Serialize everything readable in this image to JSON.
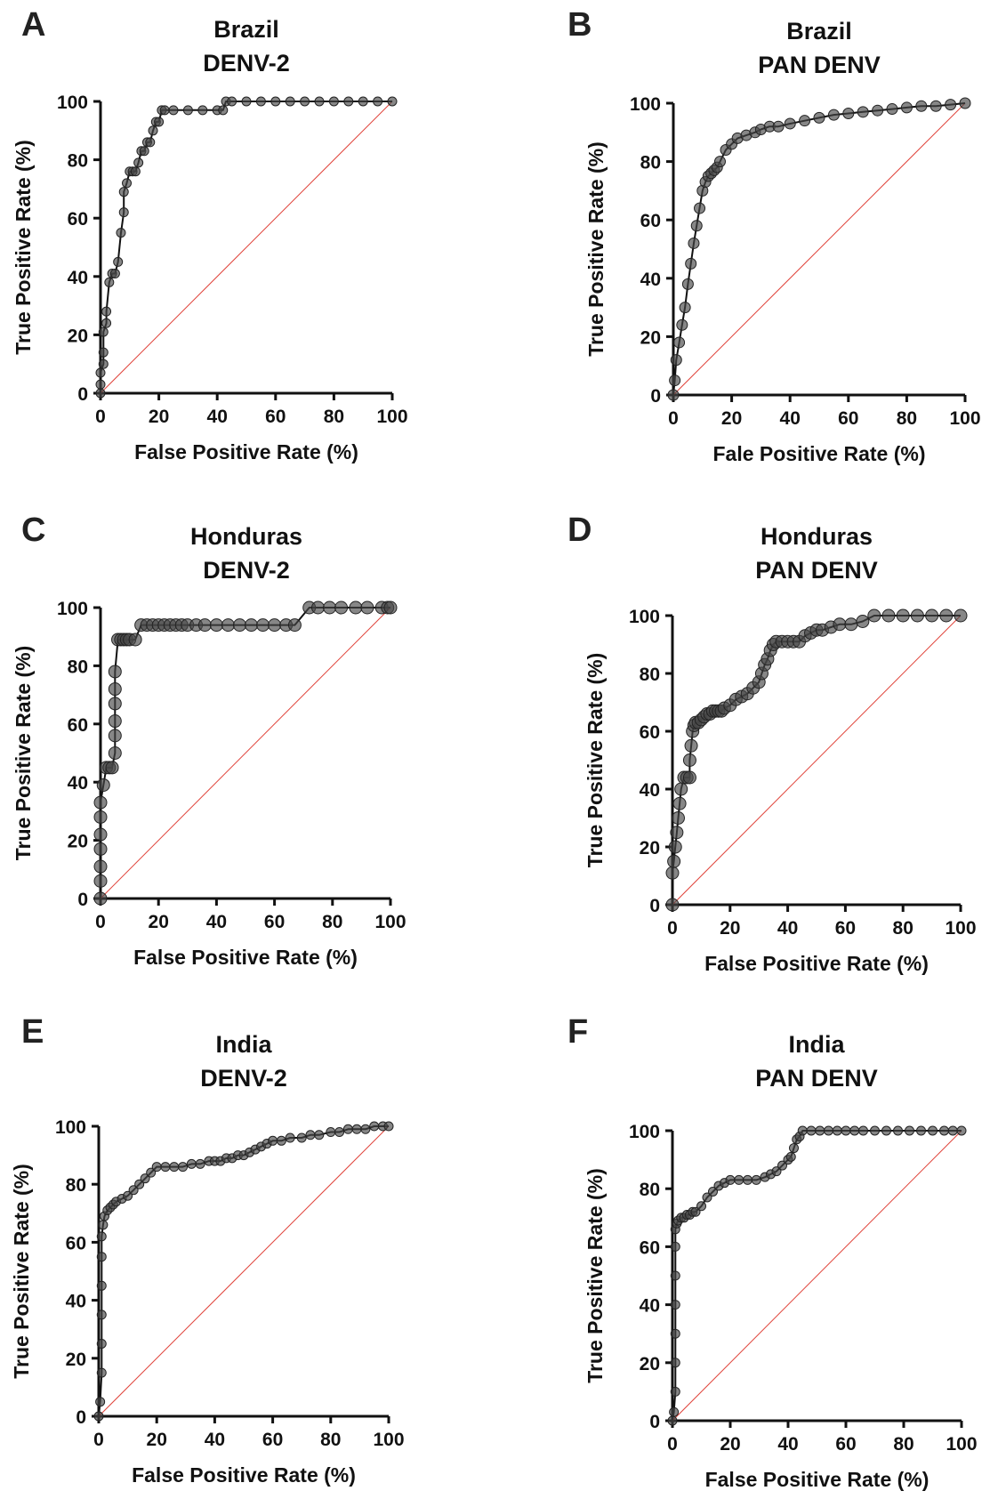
{
  "chart_data": [
    {
      "type": "line",
      "panel_letter": "A",
      "title": [
        "Brazil",
        "DENV-2"
      ],
      "xlabel": "False Positive Rate (%)",
      "ylabel": "True Positive Rate (%)",
      "xlim": [
        0,
        100
      ],
      "ylim": [
        0,
        100
      ],
      "xticks": [
        "0",
        "20",
        "40",
        "60",
        "80",
        "100"
      ],
      "yticks": [
        "0",
        "20",
        "40",
        "60",
        "80",
        "100"
      ],
      "grid": false,
      "reference_line": true,
      "series": [
        {
          "x": [
            0,
            0,
            0,
            1,
            1,
            1,
            2,
            2,
            3,
            4,
            5,
            6,
            7,
            8,
            8,
            9,
            10,
            11,
            12,
            13,
            14,
            15,
            16,
            17,
            18,
            19,
            20,
            21,
            22,
            25,
            30,
            35,
            40,
            42,
            43,
            45,
            50,
            55,
            60,
            65,
            70,
            75,
            80,
            85,
            90,
            95,
            100
          ],
          "y": [
            0,
            3,
            7,
            10,
            14,
            21,
            24,
            28,
            38,
            41,
            41,
            45,
            55,
            62,
            69,
            72,
            76,
            76,
            76,
            79,
            83,
            83,
            86,
            86,
            90,
            93,
            93,
            97,
            97,
            97,
            97,
            97,
            97,
            97,
            100,
            100,
            100,
            100,
            100,
            100,
            100,
            100,
            100,
            100,
            100,
            100,
            100
          ]
        }
      ]
    },
    {
      "type": "line",
      "panel_letter": "B",
      "title": [
        "Brazil",
        "PAN DENV"
      ],
      "xlabel": "Fale Positive Rate (%)",
      "ylabel": "True Positive Rate (%)",
      "xlim": [
        0,
        100
      ],
      "ylim": [
        0,
        100
      ],
      "xticks": [
        "0",
        "20",
        "40",
        "60",
        "80",
        "100"
      ],
      "yticks": [
        "0",
        "20",
        "40",
        "60",
        "80",
        "100"
      ],
      "grid": false,
      "reference_line": true,
      "series": [
        {
          "x": [
            0,
            0.5,
            1,
            2,
            3,
            4,
            5,
            6,
            7,
            8,
            9,
            10,
            11,
            12,
            13,
            14,
            15,
            16,
            18,
            20,
            22,
            25,
            28,
            30,
            33,
            36,
            40,
            45,
            50,
            55,
            60,
            65,
            70,
            75,
            80,
            85,
            90,
            95,
            100
          ],
          "y": [
            0,
            5,
            12,
            18,
            24,
            30,
            38,
            45,
            52,
            58,
            64,
            70,
            73,
            75,
            76,
            77,
            78,
            80,
            84,
            86,
            88,
            89,
            90,
            91,
            92,
            92,
            93,
            94,
            95,
            96,
            96.5,
            97,
            97.5,
            98,
            98.5,
            99,
            99,
            99.5,
            100
          ]
        }
      ]
    },
    {
      "type": "line",
      "panel_letter": "C",
      "title": [
        "Honduras",
        "DENV-2"
      ],
      "xlabel": "False Positive Rate (%)",
      "ylabel": "True Positive Rate (%)",
      "xlim": [
        0,
        100
      ],
      "ylim": [
        0,
        100
      ],
      "xticks": [
        "0",
        "20",
        "40",
        "60",
        "80",
        "100"
      ],
      "yticks": [
        "0",
        "20",
        "40",
        "60",
        "80",
        "100"
      ],
      "grid": false,
      "reference_line": true,
      "series": [
        {
          "x": [
            0,
            0,
            0,
            0,
            0,
            0,
            0,
            1,
            2,
            3,
            4,
            5,
            5,
            5,
            5,
            5,
            5,
            6,
            7,
            8,
            9,
            10,
            12,
            14,
            16,
            18,
            20,
            22,
            24,
            26,
            28,
            30,
            33,
            36,
            40,
            44,
            48,
            52,
            56,
            60,
            64,
            67,
            72,
            75,
            79,
            83,
            88,
            92,
            97,
            99,
            100
          ],
          "y": [
            0,
            6,
            11,
            17,
            22,
            28,
            33,
            39,
            45,
            45,
            45,
            50,
            56,
            61,
            67,
            72,
            78,
            89,
            89,
            89,
            89,
            89,
            89,
            94,
            94,
            94,
            94,
            94,
            94,
            94,
            94,
            94,
            94,
            94,
            94,
            94,
            94,
            94,
            94,
            94,
            94,
            94,
            100,
            100,
            100,
            100,
            100,
            100,
            100,
            100,
            100
          ]
        }
      ]
    },
    {
      "type": "line",
      "panel_letter": "D",
      "title": [
        "Honduras",
        "PAN DENV"
      ],
      "xlabel": "False Positive Rate (%)",
      "ylabel": "True Positive Rate (%)",
      "xlim": [
        0,
        100
      ],
      "ylim": [
        0,
        100
      ],
      "xticks": [
        "0",
        "20",
        "40",
        "60",
        "80",
        "100"
      ],
      "yticks": [
        "0",
        "20",
        "40",
        "60",
        "80",
        "100"
      ],
      "grid": false,
      "reference_line": true,
      "series": [
        {
          "x": [
            0,
            0,
            0.5,
            1,
            1.5,
            2,
            2.5,
            3,
            4,
            5,
            6,
            6,
            6.5,
            7,
            7.5,
            8,
            9,
            10,
            11,
            12,
            13,
            14,
            15,
            16,
            17,
            18,
            20,
            22,
            24,
            26,
            28,
            30,
            31,
            32,
            33,
            34,
            35,
            36,
            38,
            40,
            42,
            44,
            46,
            48,
            50,
            52,
            55,
            58,
            62,
            66,
            70,
            75,
            80,
            85,
            90,
            95,
            100
          ],
          "y": [
            0,
            11,
            15,
            20,
            25,
            30,
            35,
            40,
            44,
            44,
            44,
            50,
            55,
            60,
            62,
            63,
            63,
            64,
            65,
            66,
            66,
            67,
            67,
            67,
            67,
            68,
            69,
            71,
            72,
            73,
            75,
            77,
            80,
            83,
            85,
            88,
            90,
            91,
            91,
            91,
            91,
            91,
            93,
            94,
            95,
            95,
            96,
            97,
            97,
            98,
            100,
            100,
            100,
            100,
            100,
            100,
            100
          ]
        }
      ]
    },
    {
      "type": "line",
      "panel_letter": "E",
      "title": [
        "India",
        "DENV-2"
      ],
      "xlabel": "False Positive Rate (%)",
      "ylabel": "True Positive Rate (%)",
      "xlim": [
        0,
        100
      ],
      "ylim": [
        0,
        100
      ],
      "xticks": [
        "0",
        "20",
        "40",
        "60",
        "80",
        "100"
      ],
      "yticks": [
        "0",
        "20",
        "40",
        "60",
        "80",
        "100"
      ],
      "grid": false,
      "reference_line": true,
      "series": [
        {
          "x": [
            0,
            0.5,
            1,
            1,
            1,
            1,
            1,
            1,
            1.5,
            2,
            3,
            4,
            5,
            6,
            8,
            10,
            12,
            14,
            16,
            18,
            20,
            23,
            26,
            29,
            32,
            35,
            38,
            40,
            42,
            44,
            46,
            48,
            50,
            52,
            54,
            56,
            58,
            60,
            63,
            66,
            70,
            73,
            76,
            80,
            83,
            86,
            89,
            92,
            95,
            98,
            100
          ],
          "y": [
            0,
            5,
            15,
            25,
            35,
            45,
            55,
            62,
            66,
            69,
            71,
            72,
            73,
            74,
            75,
            76,
            78,
            80,
            82,
            84,
            86,
            86,
            86,
            86,
            87,
            87,
            88,
            88,
            88,
            89,
            89,
            90,
            90,
            91,
            92,
            93,
            94,
            95,
            95,
            96,
            96,
            97,
            97,
            98,
            98,
            99,
            99,
            99,
            100,
            100,
            100
          ]
        }
      ]
    },
    {
      "type": "line",
      "panel_letter": "F",
      "title": [
        "India",
        "PAN DENV"
      ],
      "xlabel": "False Positive Rate (%)",
      "ylabel": "True Positive Rate (%)",
      "xlim": [
        0,
        100
      ],
      "ylim": [
        0,
        100
      ],
      "xticks": [
        "0",
        "20",
        "40",
        "60",
        "80",
        "100"
      ],
      "yticks": [
        "0",
        "20",
        "40",
        "60",
        "80",
        "100"
      ],
      "grid": false,
      "reference_line": true,
      "series": [
        {
          "x": [
            0,
            0.5,
            1,
            1,
            1,
            1,
            1,
            1,
            1,
            1.5,
            2,
            3,
            4,
            5,
            6,
            7,
            8,
            10,
            12,
            14,
            16,
            18,
            20,
            23,
            26,
            29,
            32,
            34,
            36,
            38,
            40,
            41,
            42,
            43,
            44,
            45,
            48,
            51,
            54,
            57,
            60,
            63,
            66,
            70,
            74,
            78,
            82,
            86,
            90,
            94,
            97,
            100
          ],
          "y": [
            0,
            3,
            10,
            20,
            30,
            40,
            50,
            60,
            66,
            68,
            69,
            70,
            70,
            71,
            71,
            72,
            72,
            74,
            77,
            79,
            81,
            82,
            83,
            83,
            83,
            83,
            84,
            85,
            86,
            88,
            90,
            91,
            94,
            97,
            98,
            100,
            100,
            100,
            100,
            100,
            100,
            100,
            100,
            100,
            100,
            100,
            100,
            100,
            100,
            100,
            100,
            100
          ]
        }
      ]
    }
  ]
}
